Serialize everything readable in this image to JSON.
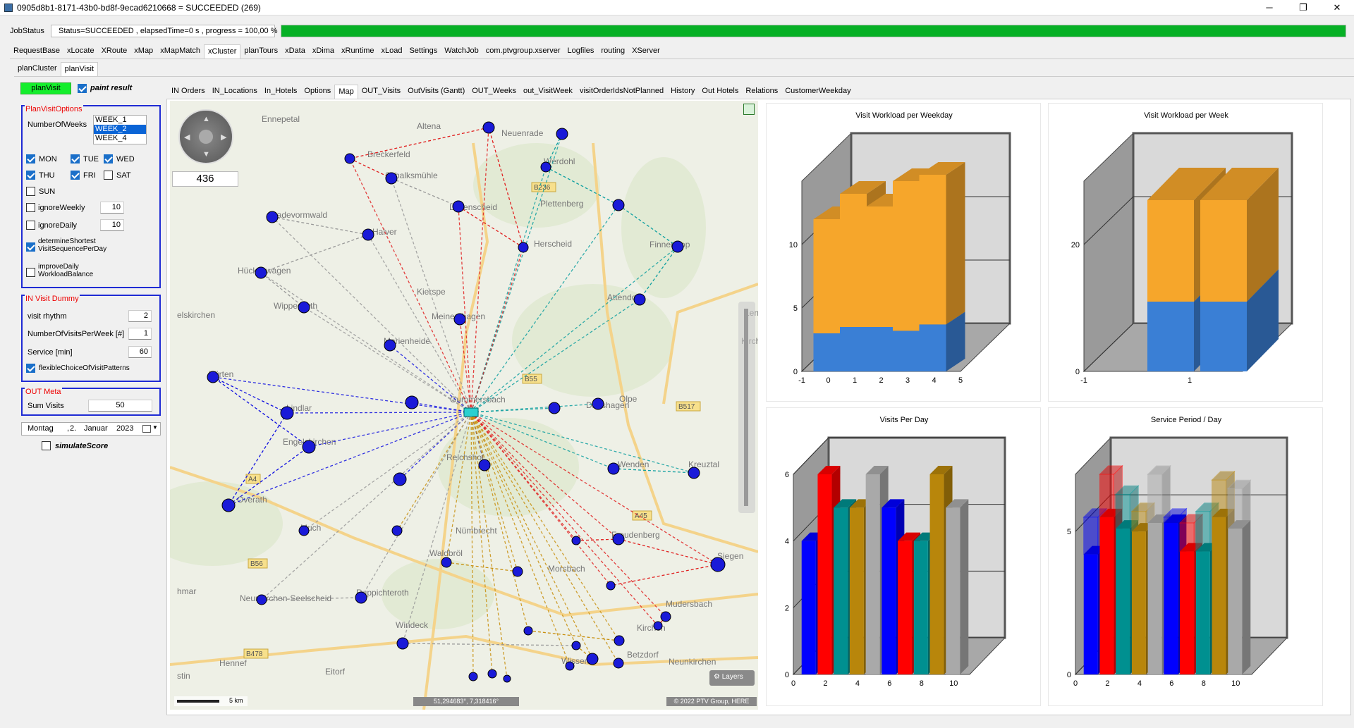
{
  "window": {
    "title": "0905d8b1-8171-43b0-bd8f-9ecad6210668 = SUCCEEDED (269)",
    "minimize": "─",
    "maximize": "❐",
    "close": "✕"
  },
  "jobstatus": {
    "label": "JobStatus",
    "status": "Status=SUCCEEDED , elapsedTime=0 s , progress = 100,00 %",
    "progress": 1.0,
    "progress_color": "#06b025"
  },
  "main_tabs": [
    "RequestBase",
    "xLocate",
    "XRoute",
    "xMap",
    "xMapMatch",
    "xCluster",
    "planTours",
    "xData",
    "xDima",
    "xRuntime",
    "xLoad",
    "Settings",
    "WatchJob",
    "com.ptvgroup.xserver",
    "Logfiles",
    "routing",
    "XServer"
  ],
  "main_tab_active": "xCluster",
  "sub_tabs": [
    "planCluster",
    "planVisit"
  ],
  "sub_tab_active": "planVisit",
  "left": {
    "planvisit_button": "planVisit",
    "paint_result": "paint result",
    "options_title": "PlanVisitOptions",
    "number_of_weeks_label": "NumberOfWeeks",
    "weeks": [
      "WEEK_1",
      "WEEK_2",
      "WEEK_4"
    ],
    "weeks_selected": "WEEK_2",
    "days": {
      "mon": "MON",
      "tue": "TUE",
      "wed": "WED",
      "thu": "THU",
      "fri": "FRI",
      "sat": "SAT",
      "sun": "SUN"
    },
    "ignore_weekly": "ignoreWeekly",
    "ignore_weekly_value": "10",
    "ignore_daily": "ignoreDaily",
    "ignore_daily_value": "10",
    "determine_shortest_1": "determineShortest",
    "determine_shortest_2": "VisitSequencePerDay",
    "improve_daily_1": "improveDaily",
    "improve_daily_2": "WorkloadBalance",
    "dummy_title": "IN Visit Dummy",
    "visit_rhythm": "visit rhythm",
    "visit_rhythm_value": "2",
    "visits_per_week": "NumberOfVisitsPerWeek [#]",
    "visits_per_week_value": "1",
    "service": "Service [min]",
    "service_value": "60",
    "flexible": "flexibleChoiceOfVisitPatterns",
    "meta_title": "OUT Meta",
    "sum_visits": "Sum Visits",
    "sum_visits_value": "50",
    "date_day": "Montag",
    "date_sep": ",",
    "date_d": "2.",
    "date_month": "Januar",
    "date_year": "2023",
    "simulate_score": "simulateScore"
  },
  "content_tabs": [
    "IN Orders",
    "IN_Locations",
    "In_Hotels",
    "Options",
    "Map",
    "OUT_Visits",
    "OutVisits (Gantt)",
    "OUT_Weeks",
    "out_VisitWeek",
    "visitOrderIdsNotPlanned",
    "History",
    "Out Hotels",
    "Relations",
    "CustomerWeekday"
  ],
  "content_tab_active": "Map",
  "map": {
    "zoom_value": "436",
    "scale_label": "5 km",
    "coords": "51,294683°, 7,318416°",
    "copyright": "© 2022 PTV Group, HERE",
    "layers_label": "Layers",
    "places": [
      "Ennepetal",
      "Altena",
      "Neuenrade",
      "Breckerfeld",
      "Schalksmühle",
      "Werdohl",
      "Lüdenscheid",
      "Plettenberg",
      "Radevormwald",
      "Halver",
      "Herscheid",
      "Finnentrop",
      "Hückeswagen",
      "Kierspe",
      "Attendorn",
      "Wipperfürth",
      "Meinerzhagen",
      "Lennestadt",
      "Marienheide",
      "Kirchhundem",
      "Kürten",
      "Gummersbach",
      "Drolshagen",
      "Olpe",
      "Lindlar",
      "Engelskirchen",
      "Reichshof",
      "Wenden",
      "Kreuztal",
      "Overath",
      "Much",
      "Nümbrecht",
      "Freudenberg",
      "Siegen",
      "Waldbröl",
      "Morsbach",
      "Neunkirchen-Seelscheid",
      "Ruppichteroth",
      "Mudersbach",
      "Windeck",
      "Kirchen",
      "Wissen",
      "Betzdorf",
      "Neunkirchen",
      "Hennef",
      "Eitorf",
      "elskirchen",
      "hmar",
      "stin"
    ],
    "road_labels": [
      "B236",
      "B55",
      "B517",
      "A4",
      "A45",
      "B56",
      "B478"
    ],
    "route_colors": [
      "#e02020",
      "#1010e0",
      "#10a0a0",
      "#c89010",
      "#999999"
    ]
  },
  "charts": {
    "weekday": {
      "title": "Visit Workload per Weekday"
    },
    "week": {
      "title": "Visit Workload per Week"
    },
    "visits_day": {
      "title": "Visits Per Day"
    },
    "service_day": {
      "title": "Service Period / Day"
    }
  },
  "chart_data": [
    {
      "type": "bar",
      "title": "Visit Workload per Weekday",
      "categories": [
        "0",
        "1",
        "2",
        "3",
        "4"
      ],
      "series": [
        {
          "values": [
            3,
            3.5,
            3.5,
            3.2,
            3.7
          ]
        },
        {
          "values": [
            12,
            14,
            13,
            15,
            15.5
          ]
        }
      ],
      "xlim": [
        -1,
        5
      ],
      "ylim": [
        0,
        15
      ],
      "yticks": [
        0,
        5,
        10
      ],
      "xticks": [
        -1,
        0,
        1,
        2,
        3,
        4,
        5
      ],
      "colors": [
        "#3a7fd5",
        "#f6a62b"
      ]
    },
    {
      "type": "bar",
      "title": "Visit Workload per Week",
      "categories": [
        "0",
        "1"
      ],
      "series": [
        {
          "values": [
            11,
            11
          ]
        },
        {
          "values": [
            27,
            27
          ]
        }
      ],
      "xlim": [
        -1,
        2
      ],
      "ylim": [
        0,
        30
      ],
      "yticks": [
        0,
        20
      ],
      "xticks": [
        -1,
        1
      ],
      "colors": [
        "#3a7fd5",
        "#f6a62b"
      ]
    },
    {
      "type": "bar",
      "title": "Visits Per Day",
      "categories": [
        "1",
        "2",
        "3",
        "4",
        "5",
        "6",
        "7",
        "8",
        "9",
        "10"
      ],
      "values": [
        4,
        6,
        5,
        5,
        6,
        5,
        4,
        4,
        6,
        5
      ],
      "ylim": [
        0,
        6
      ],
      "yticks": [
        0,
        2,
        4,
        6
      ],
      "xticks": [
        0,
        2,
        4,
        6,
        8,
        10
      ],
      "colors": [
        "#0000ff",
        "#ff0000",
        "#009090",
        "#b8860b",
        "#a9a9a9",
        "#0000ff",
        "#ff0000",
        "#009090",
        "#b8860b",
        "#a9a9a9"
      ]
    },
    {
      "type": "bar",
      "title": "Service Period / Day",
      "categories": [
        "1",
        "2",
        "3",
        "4",
        "5",
        "6",
        "7",
        "8",
        "9",
        "10"
      ],
      "values": [
        4.2,
        5.5,
        5.1,
        5.0,
        5.3,
        5.3,
        4.3,
        4.3,
        5.5,
        5.1
      ],
      "upper": [
        5.5,
        7.0,
        6.3,
        5.7,
        7.0,
        5.5,
        5.3,
        5.7,
        6.8,
        6.5
      ],
      "ylim": [
        0,
        7
      ],
      "yticks": [
        0,
        5
      ],
      "xticks": [
        0,
        2,
        4,
        6,
        8,
        10
      ],
      "colors": [
        "#0000ff",
        "#ff0000",
        "#009090",
        "#b8860b",
        "#a9a9a9",
        "#0000ff",
        "#ff0000",
        "#009090",
        "#b8860b",
        "#a9a9a9"
      ]
    }
  ]
}
